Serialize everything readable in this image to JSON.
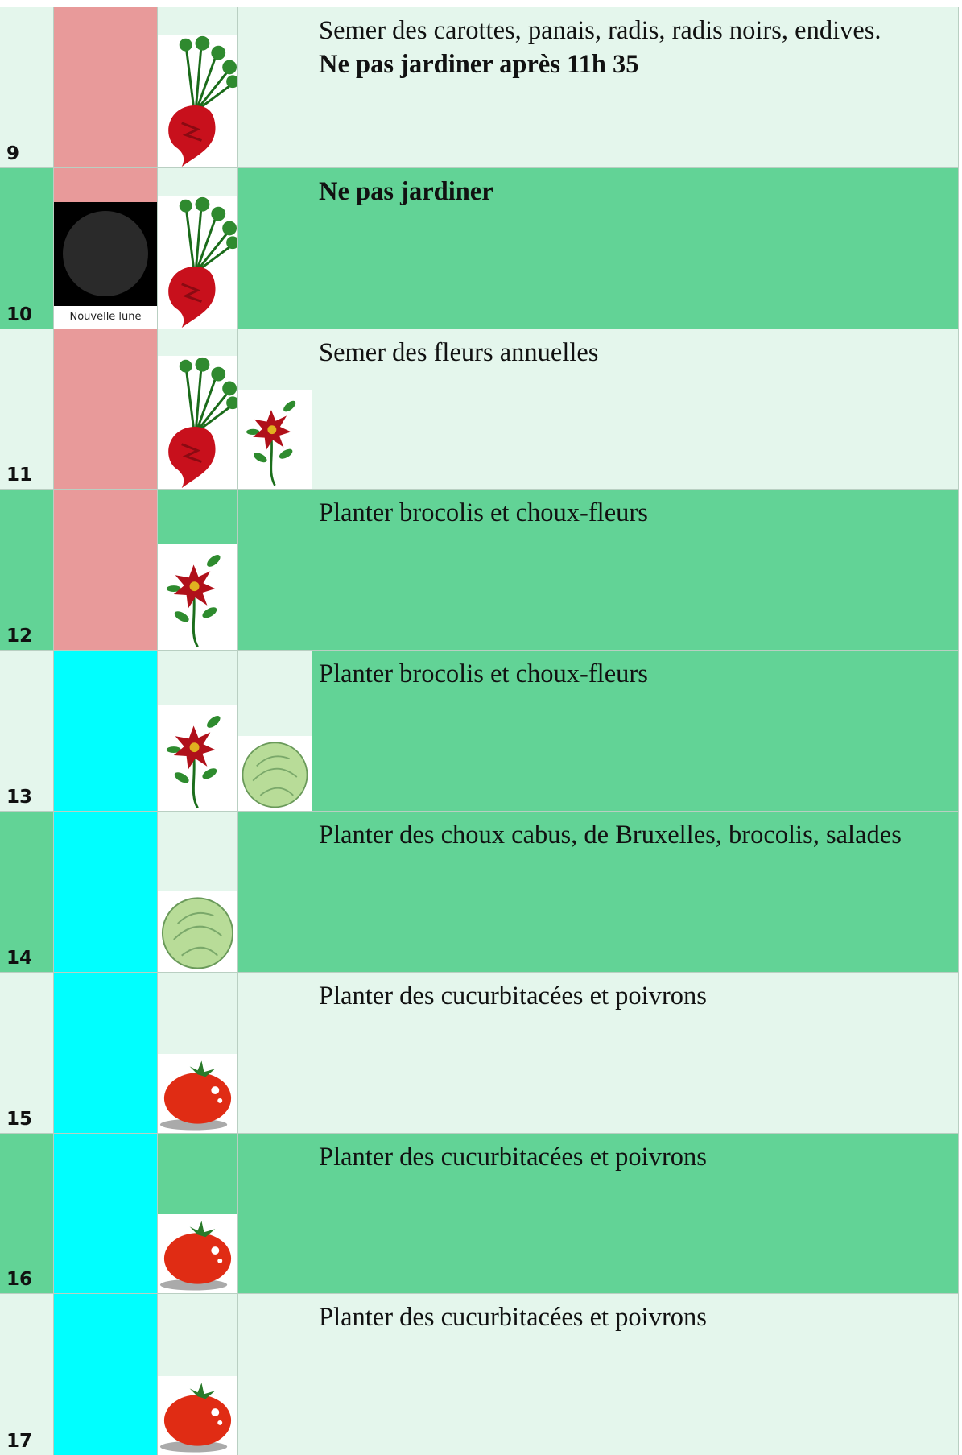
{
  "moon_label": "Nouvelle lune",
  "days": [
    {
      "day": 9,
      "text": "Semer des carottes, panais, radis, radis noirs, endives.",
      "bold": "Ne pas jardiner après 11h 35"
    },
    {
      "day": 10,
      "bold": "Ne pas jardiner"
    },
    {
      "day": 11,
      "text": "Semer des fleurs annuelles"
    },
    {
      "day": 12,
      "text": "Planter brocolis et choux-fleurs"
    },
    {
      "day": 13,
      "text": "Planter brocolis et choux-fleurs"
    },
    {
      "day": 14,
      "text": "Planter des choux cabus, de Bruxelles, brocolis, salades"
    },
    {
      "day": 15,
      "text": "Planter des cucurbitacées et poivrons"
    },
    {
      "day": 16,
      "text": "Planter des cucurbitacées et poivrons"
    },
    {
      "day": 17,
      "text": "Planter des cucurbitacées et poivrons"
    }
  ]
}
